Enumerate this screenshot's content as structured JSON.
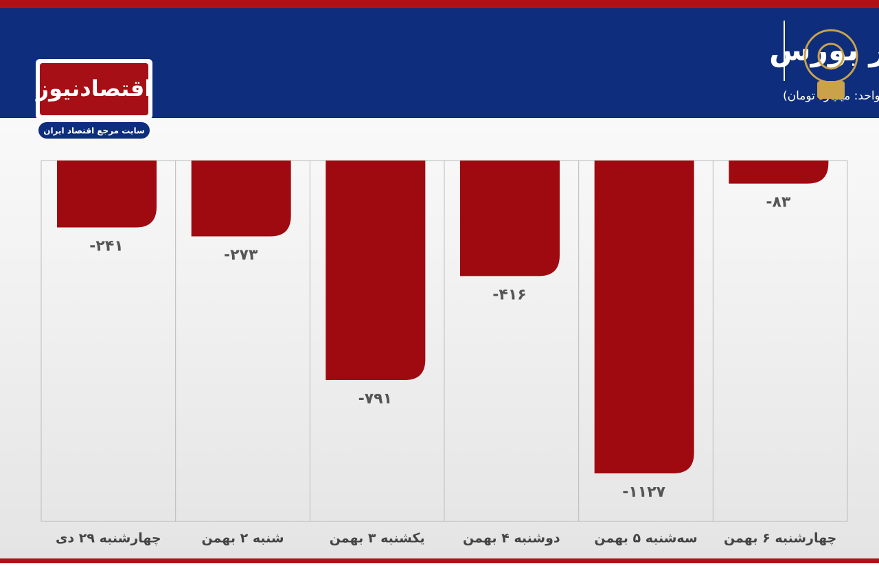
{
  "header": {
    "title": "روند ورود و خروج پول حقیقی در بورس",
    "subtitle": "(واحد: میلیارد تومان)",
    "logo": "اقتصادنیوز",
    "tagline": "سایت مرجع اقتصاد ایران"
  },
  "chart_data": {
    "type": "bar",
    "categories": [
      "چهارشنبه ۲۹ دی",
      "شنبه ۲ بهمن",
      "یکشنبه ۳ بهمن",
      "دوشنبه ۴ بهمن",
      "سه‌شنبه ۵ بهمن",
      "چهارشنبه ۶ بهمن"
    ],
    "values": [
      -241,
      -273,
      -791,
      -416,
      -1127,
      -83
    ],
    "value_labels": [
      "-۲۴۱",
      "-۲۷۳",
      "-۷۹۱",
      "-۴۱۶",
      "-۱۱۲۷",
      "-۸۳"
    ],
    "color": "#9e0a10",
    "ylim": [
      -1300,
      0
    ]
  }
}
